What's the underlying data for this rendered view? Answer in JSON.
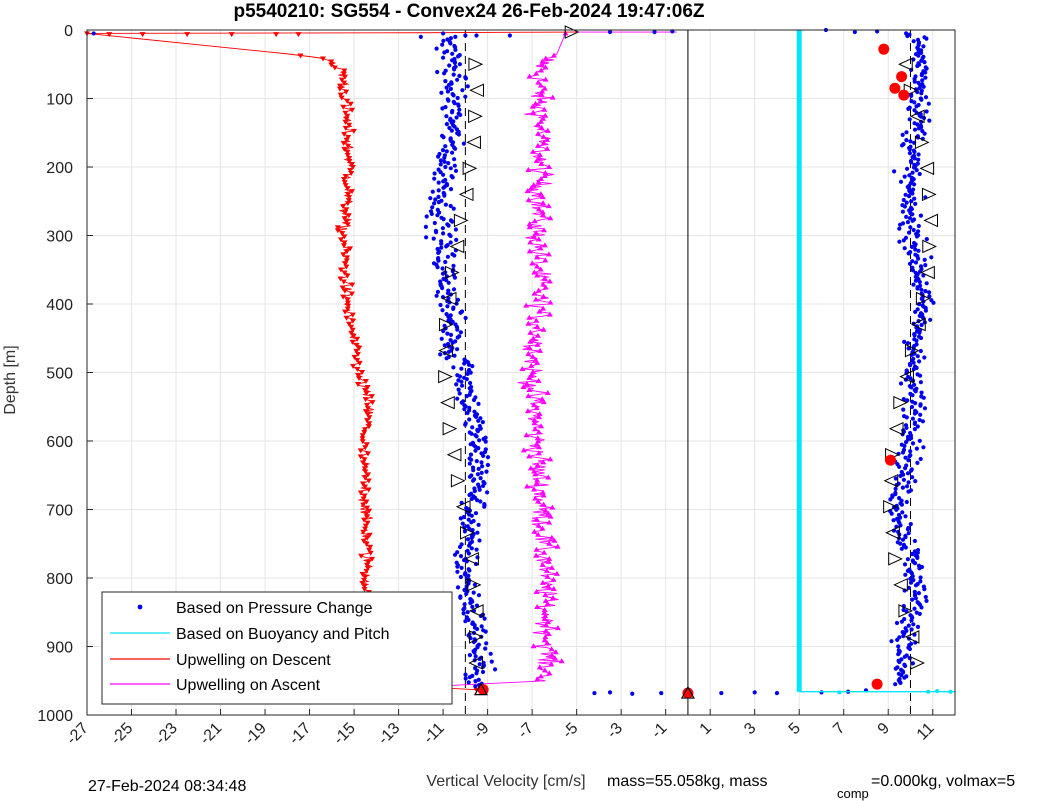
{
  "chart_data": {
    "type": "scatter",
    "title": "p5540210: SG554 - Convex24 26-Feb-2024 19:47:06Z",
    "xlabel": "Vertical Velocity [cm/s]",
    "ylabel": "Depth [m]",
    "xlim": [
      -27,
      12
    ],
    "ylim": [
      1000,
      0
    ],
    "y_reversed": true,
    "xticks": [
      -27,
      -25,
      -23,
      -21,
      -19,
      -17,
      -15,
      -13,
      -11,
      -9,
      -7,
      -5,
      -3,
      -1,
      1,
      3,
      5,
      7,
      9,
      11
    ],
    "yticks": [
      0,
      100,
      200,
      300,
      400,
      500,
      600,
      700,
      800,
      900,
      1000
    ],
    "grid": true,
    "legend_position": "bottom-left",
    "series": [
      {
        "name": "Based on Pressure Change",
        "style": "dots",
        "color": "#0000ee",
        "groups": [
          {
            "x_center": -10.2,
            "depth_range": [
              10,
              960
            ],
            "spread": 1.0
          },
          {
            "x_center": 9.9,
            "depth_range": [
              5,
              955
            ],
            "spread": 0.9
          }
        ]
      },
      {
        "name": "Based on Buoyancy and Pitch",
        "style": "line",
        "color": "#00e5ff",
        "points": [
          [
            5,
            0
          ],
          [
            5,
            966
          ],
          [
            12,
            966
          ]
        ]
      },
      {
        "name": "Upwelling on Descent",
        "style": "line-triangle-down",
        "color": "#ff0000",
        "profile": [
          [
            -27,
            5
          ],
          [
            -16.5,
            40
          ],
          [
            -15.5,
            60
          ],
          [
            -15.4,
            100
          ],
          [
            -15.2,
            200
          ],
          [
            -15.5,
            300
          ],
          [
            -15.3,
            400
          ],
          [
            -14.8,
            500
          ],
          [
            -14.3,
            550
          ],
          [
            -14.6,
            600
          ],
          [
            -14.5,
            700
          ],
          [
            -14.4,
            800
          ],
          [
            -14.5,
            900
          ],
          [
            -14.3,
            955
          ],
          [
            -9.5,
            963
          ]
        ]
      },
      {
        "name": "Upwelling on Ascent",
        "style": "line-triangle-up",
        "color": "#ff00ff",
        "profile": [
          [
            -5.5,
            5
          ],
          [
            -6.7,
            60
          ],
          [
            -6.6,
            200
          ],
          [
            -6.8,
            300
          ],
          [
            -6.6,
            400
          ],
          [
            -7.0,
            500
          ],
          [
            -6.8,
            600
          ],
          [
            -6.6,
            700
          ],
          [
            -6.4,
            800
          ],
          [
            -6.3,
            900
          ],
          [
            -6.4,
            950
          ],
          [
            -14.5,
            963
          ]
        ]
      }
    ],
    "reference_lines": [
      {
        "x": -10,
        "style": "dashed",
        "color": "#000000"
      },
      {
        "x": 0,
        "style": "solid",
        "color": "#000000"
      },
      {
        "x": 10,
        "style": "dashed",
        "color": "#000000"
      }
    ],
    "large_markers": [
      {
        "x": 8.8,
        "y": 28,
        "color": "#ff0000"
      },
      {
        "x": 9.6,
        "y": 68,
        "color": "#ff0000"
      },
      {
        "x": 9.3,
        "y": 85,
        "color": "#ff0000"
      },
      {
        "x": 9.7,
        "y": 95,
        "color": "#ff0000"
      },
      {
        "x": 9.1,
        "y": 628,
        "color": "#ff0000"
      },
      {
        "x": 8.5,
        "y": 955,
        "color": "#ff0000"
      },
      {
        "x": -9.2,
        "y": 963,
        "color": "#ff0000"
      },
      {
        "x": 0,
        "y": 968,
        "color": "#ff0000"
      }
    ],
    "footer_left": "27-Feb-2024 08:34:48",
    "footer_right_1": "mass=55.058kg, mass",
    "footer_sub": "comp",
    "footer_right_2": "=0.000kg, volmax=5"
  }
}
